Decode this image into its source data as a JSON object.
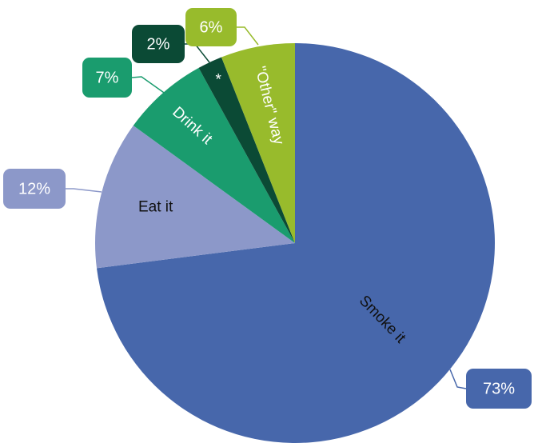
{
  "chart_data": {
    "type": "pie",
    "title": "",
    "slices": [
      {
        "label": "Smoke it",
        "value": 73,
        "value_label": "73%",
        "color": "#4767ab",
        "label_color": "#111111"
      },
      {
        "label": "Eat it",
        "value": 12,
        "value_label": "12%",
        "color": "#8c98c9",
        "label_color": "#111111"
      },
      {
        "label": "Drink it",
        "value": 7,
        "value_label": "7%",
        "color": "#1a9c6e",
        "label_color": "#ffffff"
      },
      {
        "label": "*",
        "value": 2,
        "value_label": "2%",
        "color": "#0b4a35",
        "label_color": "#ffffff"
      },
      {
        "label": "\"Other\" way",
        "value": 6,
        "value_label": "6%",
        "color": "#98bb2c",
        "label_color": "#ffffff"
      }
    ],
    "start": "12 o'clock",
    "direction": "clockwise",
    "legend": "none"
  }
}
